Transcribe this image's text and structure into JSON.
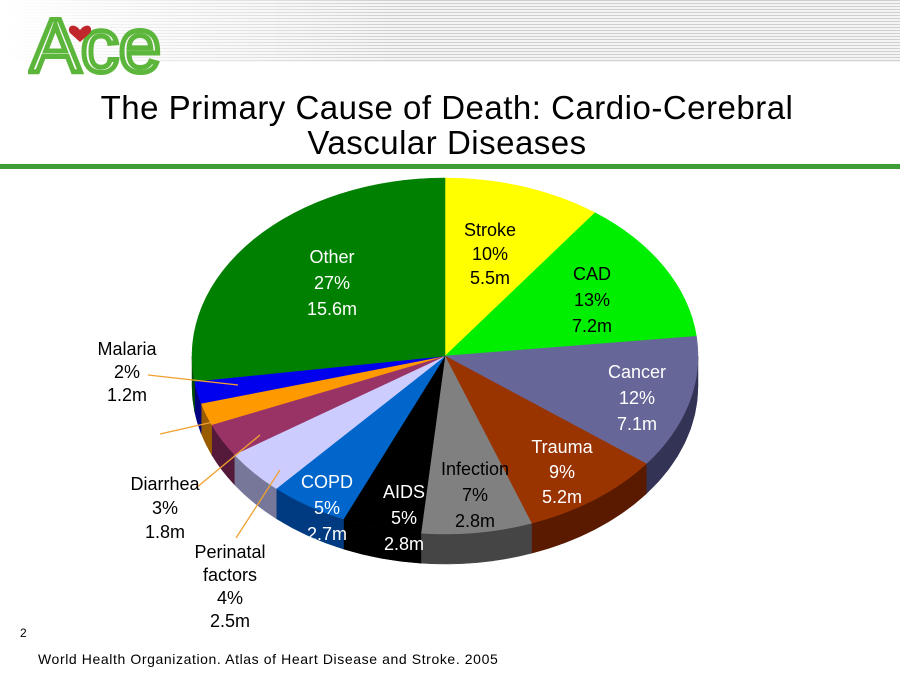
{
  "logo": {
    "text": "Ace",
    "icon": "heart-icon",
    "color": "#5cb63b",
    "heart_color": "#c0272d"
  },
  "title_line1": "The Primary Cause of Death: Cardio-Cerebral",
  "title_line2": "Vascular Diseases",
  "page_number": "2",
  "source": "World Health Organization. Atlas of Heart Disease and Stroke. 2005",
  "chart_data": {
    "type": "pie",
    "style": "3d-exploded-slices-none",
    "unit_note": "deaths in millions",
    "slices": [
      {
        "name": "Stroke",
        "percent": 10,
        "label_pct": "10%",
        "value": "5.5m",
        "color": "#ffff00",
        "side": "#a6a600",
        "text_color": "#000000"
      },
      {
        "name": "CAD",
        "percent": 13,
        "label_pct": "13%",
        "value": "7.2m",
        "color": "#00ee00",
        "side": "#009a00",
        "text_color": "#000000"
      },
      {
        "name": "Cancer",
        "percent": 12,
        "label_pct": "12%",
        "value": "7.1m",
        "color": "#666699",
        "side": "#333355",
        "text_color": "#ffffff"
      },
      {
        "name": "Trauma",
        "percent": 9,
        "label_pct": "9%",
        "value": "5.2m",
        "color": "#993300",
        "side": "#5a1a00",
        "text_color": "#ffffff"
      },
      {
        "name": "Infection",
        "percent": 7,
        "label_pct": "7%",
        "value": "2.8m",
        "color": "#808080",
        "side": "#454545",
        "text_color": "#000000"
      },
      {
        "name": "AIDS",
        "percent": 5,
        "label_pct": "5%",
        "value": "2.8m",
        "color": "#000000",
        "side": "#000000",
        "text_color": "#ffffff"
      },
      {
        "name": "COPD",
        "percent": 5,
        "label_pct": "5%",
        "value": "2.7m",
        "color": "#0066cc",
        "side": "#003a80",
        "text_color": "#ffffff"
      },
      {
        "name": "Perinatal factors",
        "percent": 4,
        "label_pct": "4%",
        "value": "2.5m",
        "color": "#ccccff",
        "side": "#77779a",
        "text_color": "#000000"
      },
      {
        "name": "Diarrhea",
        "percent": 3,
        "label_pct": "3%",
        "value": "1.8m",
        "color": "#993366",
        "side": "#55193a",
        "text_color": "#000000"
      },
      {
        "name": "",
        "percent": 2,
        "label_pct": "",
        "value": "",
        "color": "#ff9900",
        "side": "#9a5c00",
        "text_color": "#000000"
      },
      {
        "name": "Malaria",
        "percent": 2,
        "label_pct": "2%",
        "value": "1.2m",
        "color": "#0000ee",
        "side": "#000080",
        "text_color": "#000000"
      },
      {
        "name": "Other",
        "percent": 27,
        "label_pct": "27%",
        "value": "15.6m",
        "color": "#008000",
        "side": "#004d00",
        "text_color": "#ffffff"
      }
    ]
  }
}
